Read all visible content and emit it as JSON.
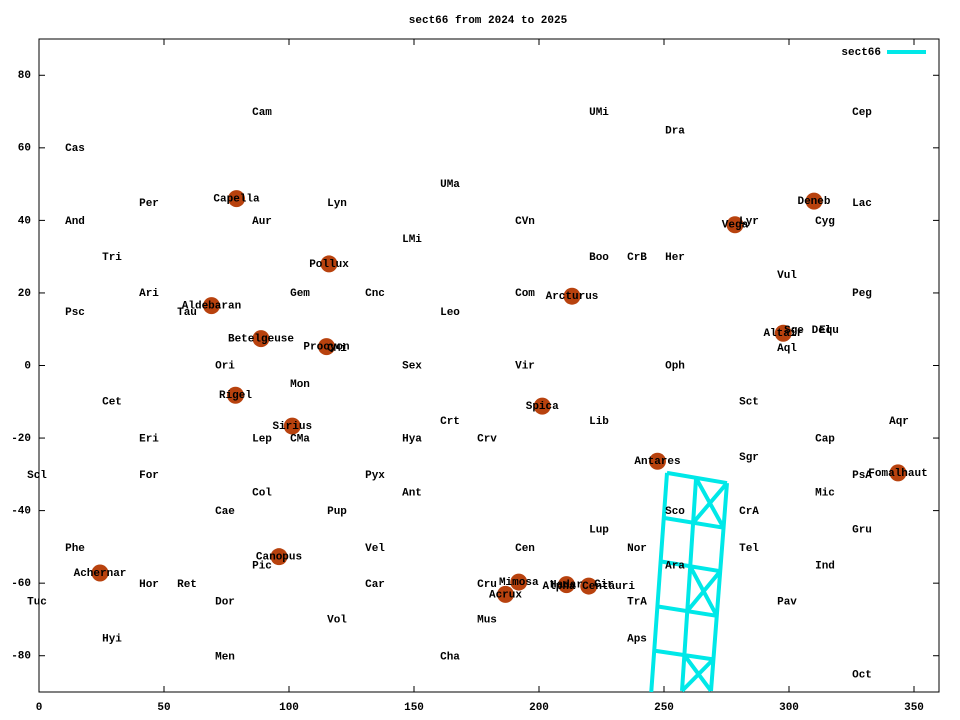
{
  "chart_data": {
    "type": "line",
    "title": "sect66 from 2024 to 2025",
    "xlim": [
      0,
      360
    ],
    "ylim": [
      -90,
      90
    ],
    "xticks": [
      0,
      50,
      100,
      150,
      200,
      250,
      300,
      350
    ],
    "yticks": [
      -80,
      -60,
      -40,
      -20,
      0,
      20,
      40,
      60,
      80
    ],
    "legend": "top-right",
    "stars": {
      "color": "#b8420e",
      "names": [
        "Capella",
        "Deneb",
        "Vega",
        "Pollux",
        "Arcturus",
        "Aldebaran",
        "Betelgeuse",
        "Procyon",
        "Altair",
        "Rigel",
        "Spica",
        "Sirius",
        "Antares",
        "Fomalhaut",
        "Canopus",
        "Achernar",
        "Mimosa",
        "Hadar",
        "Alpha Centauri",
        "Acrux"
      ],
      "x": [
        79,
        310,
        278.4,
        116,
        213.2,
        69,
        88.8,
        115,
        297.7,
        78.6,
        201.3,
        101.3,
        247.4,
        343.6,
        96,
        24.4,
        191.9,
        211,
        219.9,
        186.6
      ],
      "y": [
        46,
        45.3,
        38.8,
        28,
        19.1,
        16.5,
        7.4,
        5.2,
        8.9,
        -8.2,
        -11.2,
        -16.7,
        -26.4,
        -29.6,
        -52.7,
        -57.2,
        -59.7,
        -60.4,
        -60.8,
        -63.1
      ]
    },
    "constellations": {
      "names": [
        "Cam",
        "UMi",
        "Cep",
        "Dra",
        "Cas",
        "UMa",
        "Per",
        "Lyn",
        "Lac",
        "And",
        "Aur",
        "CVn",
        "Lyr",
        "Cyg",
        "LMi",
        "Tri",
        "Boo",
        "CrB",
        "Her",
        "Vul",
        "Ari",
        "Gem",
        "Cnc",
        "Com",
        "Peg",
        "Psc",
        "Tau",
        "Leo",
        "Sge",
        "Del",
        "Equ",
        "CMi",
        "Aql",
        "Ori",
        "Sex",
        "Vir",
        "Oph",
        "Mon",
        "Cet",
        "Sct",
        "Crt",
        "Lib",
        "Aqr",
        "Eri",
        "Lep",
        "CMa",
        "Hya",
        "Crv",
        "Cap",
        "Sgr",
        "Scl",
        "For",
        "Pyx",
        "PsA",
        "Col",
        "Ant",
        "Mic",
        "Cae",
        "Pup",
        "Sco",
        "CrA",
        "Lup",
        "Gru",
        "Phe",
        "Vel",
        "Cen",
        "Nor",
        "Tel",
        "Pic",
        "Ara",
        "Ind",
        "Hor",
        "Ret",
        "Car",
        "Cru",
        "Cir",
        "Tuc",
        "Dor",
        "TrA",
        "Pav",
        "Vol",
        "Mus",
        "Hyi",
        "Aps",
        "Men",
        "Cha",
        "Oct"
      ],
      "x": [
        89.2,
        224,
        329.2,
        254.4,
        14.4,
        164.4,
        44,
        119.2,
        329.2,
        14.4,
        89.2,
        194.4,
        284,
        314.4,
        149.2,
        29.2,
        224,
        239.2,
        254.4,
        299.2,
        44,
        104.4,
        134.4,
        194.4,
        329.2,
        14.4,
        59.2,
        164.4,
        302,
        313,
        316,
        119.2,
        299.2,
        74.4,
        149.2,
        194.4,
        254.4,
        104.4,
        29.2,
        284,
        164.4,
        224,
        344,
        44,
        89.2,
        104.4,
        149.2,
        179.2,
        314.4,
        284,
        -0.8,
        44,
        134.4,
        329.2,
        89.2,
        149.2,
        314.4,
        74.4,
        119.2,
        254.4,
        284,
        224,
        329.2,
        14.4,
        134.4,
        194.4,
        239.2,
        284,
        89.2,
        254.4,
        314.4,
        44,
        59.2,
        134.4,
        179.2,
        226,
        -0.8,
        74.4,
        239.2,
        299.2,
        119.2,
        179.2,
        29.2,
        239.2,
        74.4,
        164.4,
        329.2
      ],
      "y": [
        69.8,
        69.8,
        69.8,
        64.8,
        59.9,
        50,
        44.8,
        44.8,
        44.8,
        39.8,
        39.8,
        39.8,
        39.8,
        39.8,
        34.8,
        29.9,
        29.9,
        29.9,
        29.9,
        24.9,
        20,
        20,
        20,
        20,
        20,
        14.7,
        14.7,
        14.7,
        9.8,
        9.8,
        9.8,
        4.8,
        4.8,
        0,
        0,
        0,
        0,
        -5.1,
        -10,
        -10,
        -15.3,
        -15.3,
        -15.3,
        -20.2,
        -20.2,
        -20.2,
        -20.2,
        -20.2,
        -20.2,
        -25.2,
        -30.2,
        -30.2,
        -30.2,
        -30.2,
        -35.1,
        -35.1,
        -35.1,
        -40.1,
        -40.1,
        -40.1,
        -40.1,
        -45.3,
        -45.3,
        -50.3,
        -50.3,
        -50.3,
        -50.3,
        -50.3,
        -55.2,
        -55.2,
        -55.2,
        -60.2,
        -60.2,
        -60.2,
        -60.2,
        -60.2,
        -65.1,
        -65.1,
        -65.1,
        -65.1,
        -70.1,
        -70.1,
        -75.3,
        -75.3,
        -80.3,
        -80.3,
        -85.2
      ]
    },
    "series": [
      {
        "name": "sect66",
        "color": "#00e8e8",
        "x": [
          251.2,
          244.9,
          null,
          262.8,
          257.2,
          null,
          275.2,
          268.8,
          null,
          251.2,
          275.2,
          null,
          249.9,
          273.8,
          null,
          248.6,
          272.5,
          null,
          247.3,
          271.1,
          null,
          246,
          269.7,
          null,
          262.8,
          273.8,
          null,
          275.2,
          261.6,
          null,
          260.5,
          271.1,
          null,
          272.5,
          259.3,
          null,
          258.1,
          268.8,
          null,
          269.7,
          257.2
        ],
        "y": [
          -29.6,
          -90,
          null,
          -31.3,
          -89.7,
          null,
          -32.4,
          -89.7,
          null,
          -29.6,
          -32.4,
          null,
          -42,
          -44.7,
          null,
          -54,
          -56.7,
          null,
          -66.4,
          -69,
          null,
          -78.6,
          -81,
          null,
          -31,
          -44.7,
          null,
          -32.4,
          -43.4,
          null,
          -55.4,
          -69,
          null,
          -56.7,
          -67.7,
          null,
          -79.8,
          -89.7,
          null,
          -81,
          -89.7
        ]
      }
    ]
  }
}
